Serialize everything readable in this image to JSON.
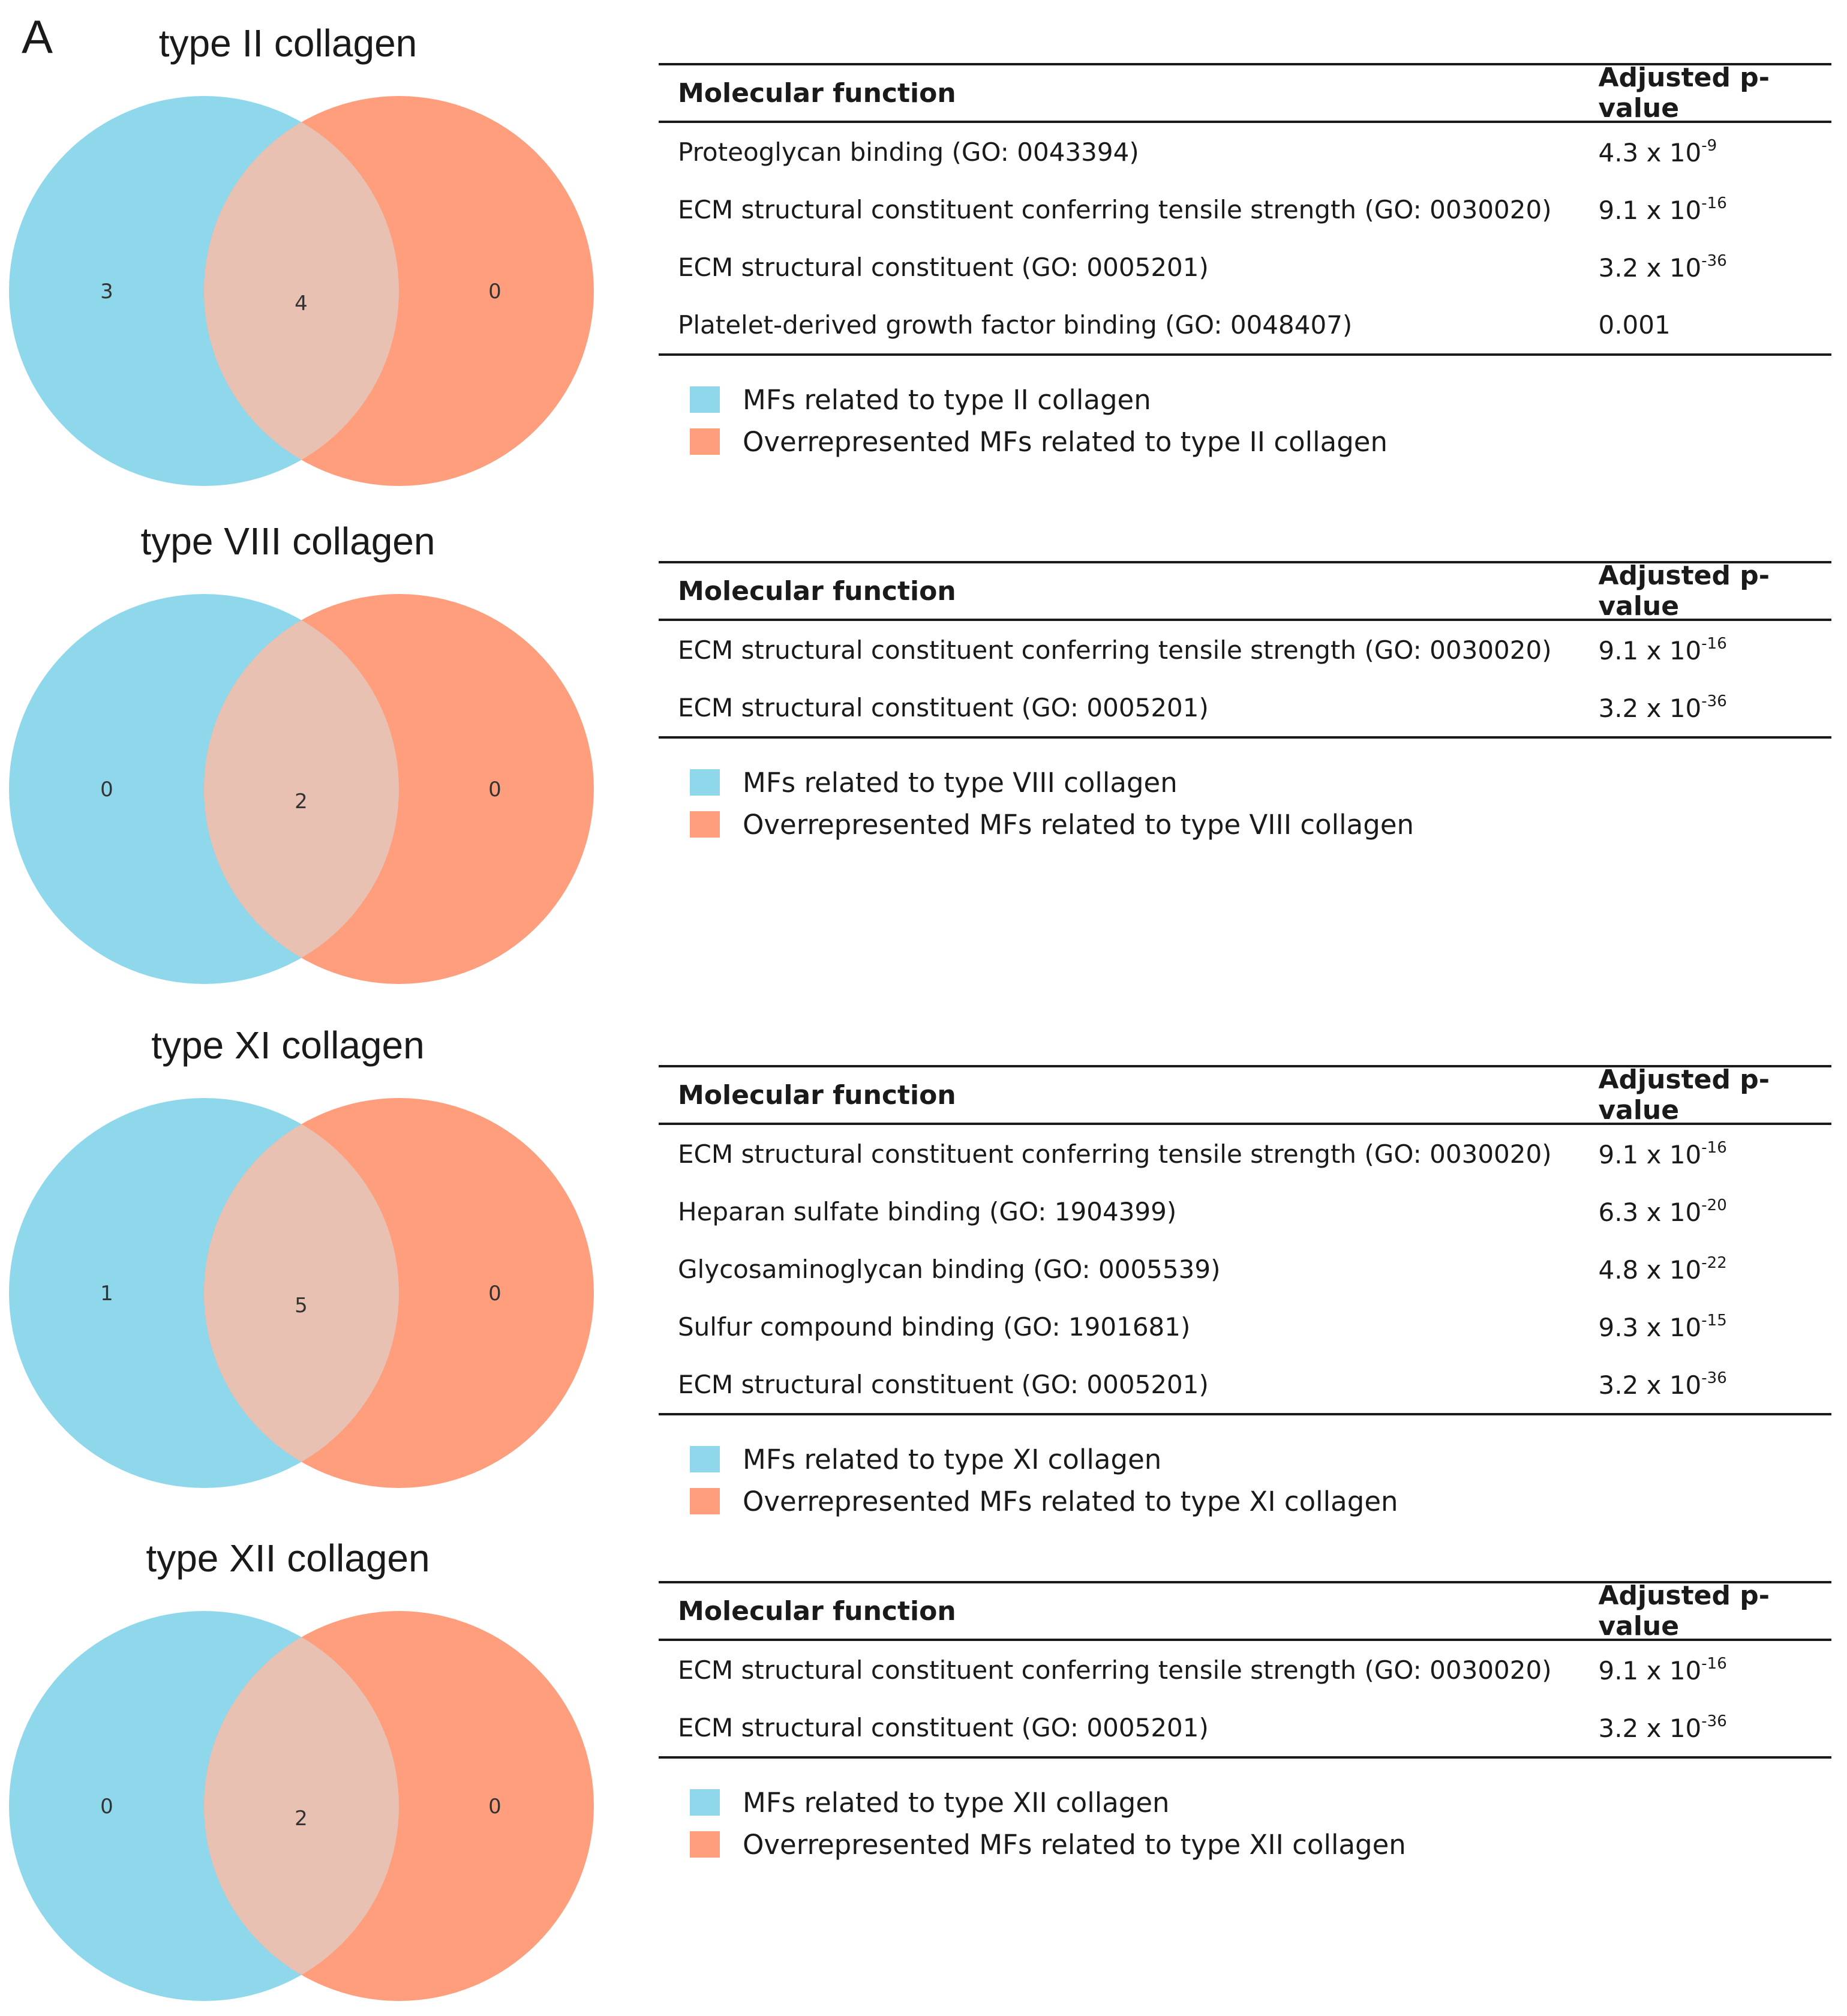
{
  "figure": {
    "panel_label": "A",
    "colors": {
      "blue": "#8fd8eb",
      "orange": "#ff9e7c",
      "overlap": "#e8c1b3",
      "rule": "#1a1a1a"
    },
    "table_headers": {
      "function": "Molecular function",
      "pvalue": "Adjusted p-value"
    },
    "sections": [
      {
        "title": "type II collagen",
        "venn": {
          "left": "3",
          "center": "4",
          "right": "0"
        },
        "rows": [
          {
            "name": "Proteoglycan binding (GO: 0043394)",
            "p_base": "4.3 x 10",
            "p_exp": "-9"
          },
          {
            "name": "ECM structural constituent conferring tensile strength (GO: 0030020)",
            "p_base": "9.1 x 10",
            "p_exp": "-16"
          },
          {
            "name": "ECM structural constituent (GO: 0005201)",
            "p_base": "3.2 x 10",
            "p_exp": "-36"
          },
          {
            "name": "Platelet-derived growth factor binding (GO: 0048407)",
            "p_base": "0.001",
            "p_exp": ""
          }
        ],
        "legend": [
          "MFs related to type II collagen",
          "Overrepresented MFs related to type II collagen"
        ]
      },
      {
        "title": "type VIII collagen",
        "venn": {
          "left": "0",
          "center": "2",
          "right": "0"
        },
        "rows": [
          {
            "name": "ECM structural constituent conferring tensile strength (GO: 0030020)",
            "p_base": "9.1 x 10",
            "p_exp": "-16"
          },
          {
            "name": "ECM structural constituent (GO: 0005201)",
            "p_base": "3.2 x 10",
            "p_exp": "-36"
          }
        ],
        "legend": [
          "MFs related to type VIII collagen",
          "Overrepresented MFs related to type VIII collagen"
        ]
      },
      {
        "title": "type XI collagen",
        "venn": {
          "left": "1",
          "center": "5",
          "right": "0"
        },
        "rows": [
          {
            "name": "ECM structural constituent conferring tensile strength (GO: 0030020)",
            "p_base": "9.1 x 10",
            "p_exp": "-16"
          },
          {
            "name": "Heparan sulfate binding (GO: 1904399)",
            "p_base": "6.3 x 10",
            "p_exp": "-20"
          },
          {
            "name": "Glycosaminoglycan binding (GO: 0005539)",
            "p_base": "4.8 x 10",
            "p_exp": "-22"
          },
          {
            "name": "Sulfur compound binding (GO: 1901681)",
            "p_base": "9.3 x 10",
            "p_exp": "-15"
          },
          {
            "name": "ECM structural constituent (GO: 0005201)",
            "p_base": "3.2 x 10",
            "p_exp": "-36"
          }
        ],
        "legend": [
          "MFs related to type XI collagen",
          "Overrepresented MFs related to type XI collagen"
        ]
      },
      {
        "title": "type XII collagen",
        "venn": {
          "left": "0",
          "center": "2",
          "right": "0"
        },
        "rows": [
          {
            "name": "ECM structural constituent conferring tensile strength (GO: 0030020)",
            "p_base": "9.1 x 10",
            "p_exp": "-16"
          },
          {
            "name": "ECM structural constituent (GO: 0005201)",
            "p_base": "3.2 x 10",
            "p_exp": "-36"
          }
        ],
        "legend": [
          "MFs related to type XII collagen",
          "Overrepresented MFs related to type XII collagen"
        ]
      }
    ]
  }
}
